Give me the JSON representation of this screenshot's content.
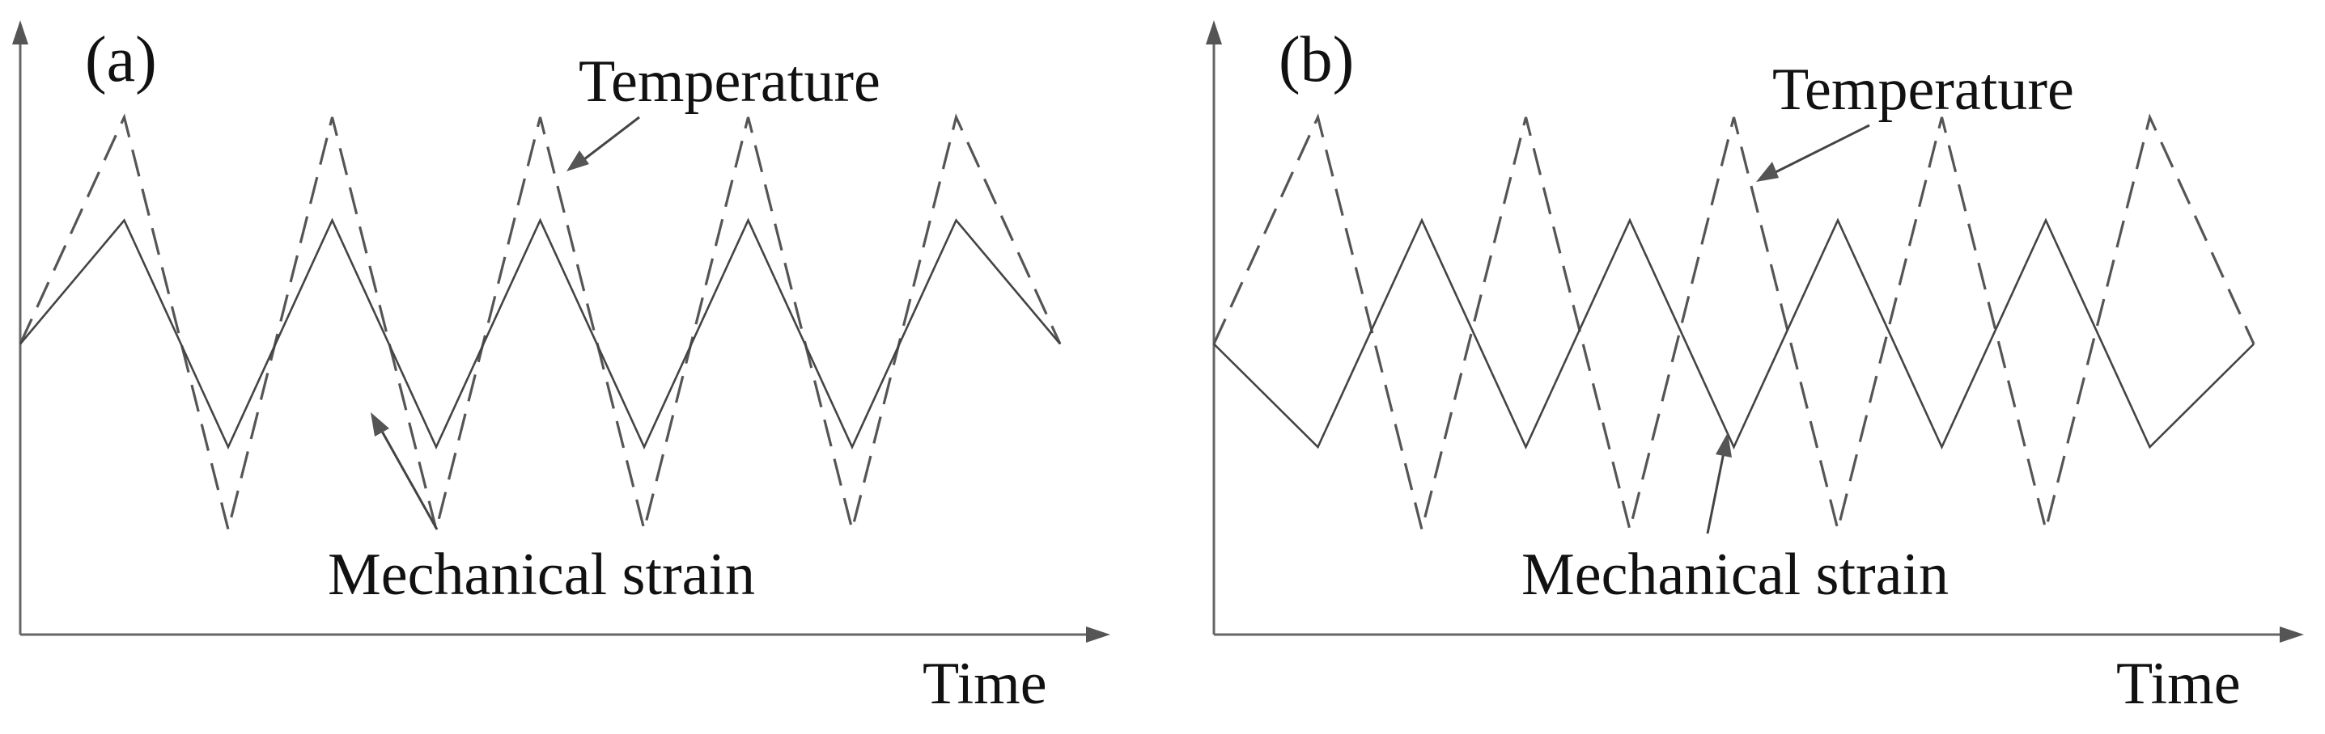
{
  "chart_data": [
    {
      "type": "line",
      "panel_label": "(a)",
      "xlabel": "Time",
      "ylabel": "",
      "description_phase": "in-phase",
      "x": [
        0,
        1,
        2,
        3,
        4,
        5,
        6,
        7,
        8,
        9,
        10
      ],
      "series": [
        {
          "name": "Temperature",
          "style": "dashed",
          "values": [
            0.45,
            1.0,
            0.0,
            1.0,
            0.0,
            1.0,
            0.0,
            1.0,
            0.0,
            1.0,
            0.45
          ]
        },
        {
          "name": "Mechanical strain",
          "style": "solid",
          "values": [
            0.45,
            0.75,
            0.2,
            0.75,
            0.2,
            0.75,
            0.2,
            0.75,
            0.2,
            0.75,
            0.45
          ]
        }
      ]
    },
    {
      "type": "line",
      "panel_label": "(b)",
      "xlabel": "Time",
      "ylabel": "",
      "description_phase": "out-of-phase",
      "x": [
        0,
        1,
        2,
        3,
        4,
        5,
        6,
        7,
        8,
        9,
        10
      ],
      "series": [
        {
          "name": "Temperature",
          "style": "dashed",
          "values": [
            0.45,
            1.0,
            0.0,
            1.0,
            0.0,
            1.0,
            0.0,
            1.0,
            0.0,
            1.0,
            0.45
          ]
        },
        {
          "name": "Mechanical strain",
          "style": "solid",
          "values": [
            0.45,
            0.2,
            0.75,
            0.2,
            0.75,
            0.2,
            0.75,
            0.2,
            0.75,
            0.2,
            0.45
          ]
        }
      ]
    }
  ],
  "colors": {
    "temperature": "#555555",
    "strain": "#444444",
    "axis": "#666666"
  }
}
